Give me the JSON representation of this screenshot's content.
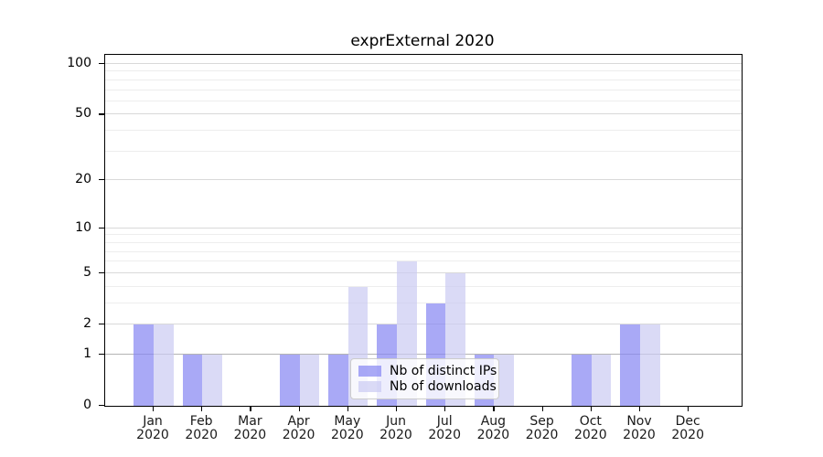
{
  "title": "exprExternal 2020",
  "legend": {
    "items": [
      {
        "label": "Nb of distinct IPs",
        "color": "rgba(133,133,242,0.7)"
      },
      {
        "label": "Nb of downloads",
        "color": "rgba(202,202,242,0.7)"
      }
    ]
  },
  "colors": {
    "distinct_ips": "#aaaaf5",
    "downloads": "#d9d9f6",
    "grid_major": "#d9d9d9",
    "grid_minor": "#ededed",
    "grid_level1": "#b4b4b4"
  },
  "chart_data": {
    "type": "bar",
    "title": "exprExternal 2020",
    "categories": [
      "Jan 2020",
      "Feb 2020",
      "Mar 2020",
      "Apr 2020",
      "May 2020",
      "Jun 2020",
      "Jul 2020",
      "Aug 2020",
      "Sep 2020",
      "Oct 2020",
      "Nov 2020",
      "Dec 2020"
    ],
    "series": [
      {
        "name": "Nb of distinct IPs",
        "color": "rgba(133,133,242,0.7)",
        "values": [
          2,
          1,
          0,
          1,
          1,
          2,
          3,
          1,
          0,
          1,
          2,
          0
        ]
      },
      {
        "name": "Nb of downloads",
        "color": "rgba(202,202,242,0.7)",
        "values": [
          2,
          1,
          0,
          1,
          4,
          6,
          5,
          1,
          0,
          1,
          2,
          0
        ]
      }
    ],
    "xlabel": "",
    "ylabel": "",
    "y_scale": "log10(1+x)",
    "ylim": [
      0,
      113.3
    ],
    "y_major_ticks": [
      0,
      1,
      2,
      5,
      10,
      20,
      50,
      100
    ],
    "y_minor_ticks": [
      3,
      4,
      6,
      7,
      8,
      9,
      30,
      40,
      60,
      70,
      80,
      90
    ],
    "grid": "on",
    "legend_position": "lower center"
  }
}
